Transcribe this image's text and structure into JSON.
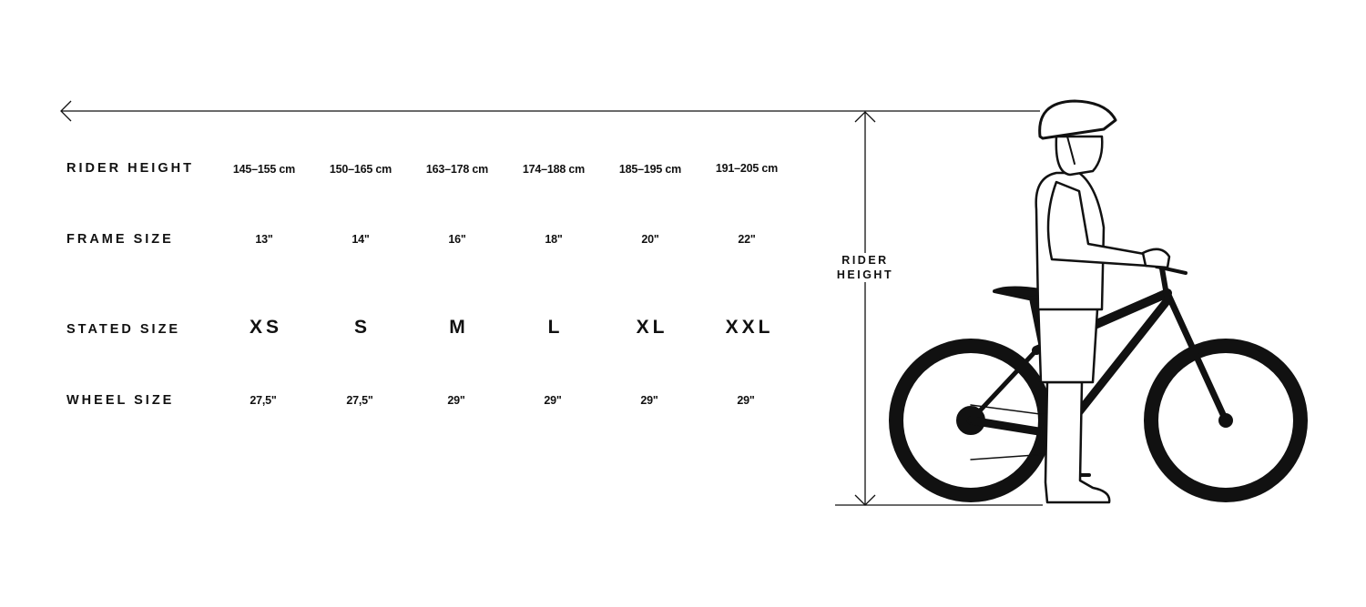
{
  "rows": [
    {
      "label": "RIDER HEIGHT",
      "values": [
        "145–155 cm",
        "150–165 cm",
        "163–178 cm",
        "174–188 cm",
        "185–195 cm",
        "191–205 cm"
      ]
    },
    {
      "label": "FRAME SIZE",
      "values": [
        "13\"",
        "14\"",
        "16\"",
        "18\"",
        "20\"",
        "22\""
      ]
    },
    {
      "label": "STATED SIZE",
      "values": [
        "XS",
        "S",
        "M",
        "L",
        "XL",
        "XXL"
      ]
    },
    {
      "label": "WHEEL SIZE",
      "values": [
        "27,5\"",
        "27,5\"",
        "29\"",
        "29\"",
        "29\"",
        "29\""
      ]
    }
  ],
  "measure": {
    "line1": "RIDER",
    "line2": "HEIGHT"
  },
  "illustration": "rider-standing-next-to-mountain-bike",
  "colors": {
    "ink": "#111111",
    "background": "#ffffff"
  }
}
